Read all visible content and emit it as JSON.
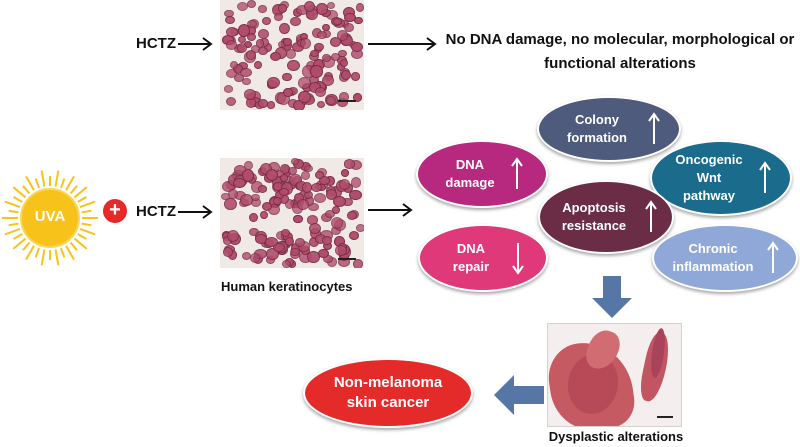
{
  "row1": {
    "drug_label": "HCTZ",
    "outcome_text": "No DNA damage, no molecular, morphological or functional alterations"
  },
  "row2": {
    "sun_label": "UVA",
    "plus_symbol": "+",
    "drug_label": "HCTZ",
    "cells_caption": "Human keratinocytes"
  },
  "effects": [
    {
      "label": "Colony formation",
      "direction": "up",
      "color": "#4f5b7c"
    },
    {
      "label": "DNA damage",
      "direction": "up",
      "color": "#b7287f"
    },
    {
      "label": "Oncogenic Wnt pathway",
      "direction": "up",
      "color": "#1a6b8c"
    },
    {
      "label": "Apoptosis resistance",
      "direction": "up",
      "color": "#6b2c46"
    },
    {
      "label": "DNA repair",
      "direction": "down",
      "color": "#e0397a"
    },
    {
      "label": "Chronic inflammation",
      "direction": "up",
      "color": "#8fa8d8"
    }
  ],
  "tissue_caption": "Dysplastic alterations",
  "result_label": "Non-melanoma skin cancer",
  "colors": {
    "sun": "#f7c31b",
    "plus": "#e52a2a",
    "result": "#e52a2a",
    "block_arrow": "#5677a6"
  }
}
